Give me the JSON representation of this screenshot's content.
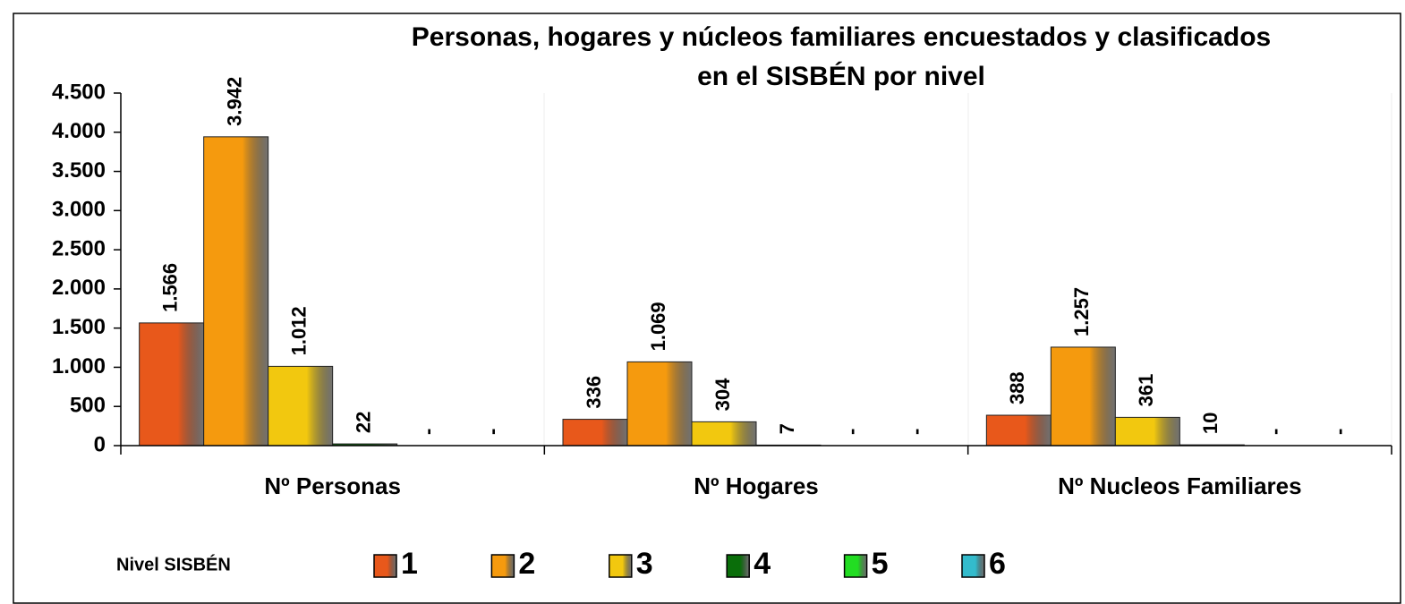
{
  "chart_data": {
    "type": "bar",
    "title": [
      "Personas, hogares y núcleos familiares encuestados y clasificados",
      "en el SISBÉN por nivel"
    ],
    "categories": [
      "Nº Personas",
      "Nº Hogares",
      "Nº Nucleos Familiares"
    ],
    "legend_title": "Nivel SISBÉN",
    "series": [
      {
        "name": "1",
        "color": "#e8581b",
        "values": [
          1566,
          336,
          388
        ],
        "value_labels": [
          "1.566",
          "336",
          "388"
        ]
      },
      {
        "name": "2",
        "color": "#f59a0e",
        "values": [
          3942,
          1069,
          1257
        ],
        "value_labels": [
          "3.942",
          "1.069",
          "1.257"
        ]
      },
      {
        "name": "3",
        "color": "#f2c80f",
        "values": [
          1012,
          304,
          361
        ],
        "value_labels": [
          "1.012",
          "304",
          "361"
        ]
      },
      {
        "name": "4",
        "color": "#0a6e0a",
        "values": [
          22,
          7,
          10
        ],
        "value_labels": [
          "22",
          "7",
          "10"
        ]
      },
      {
        "name": "5",
        "color": "#22dd22",
        "values": [
          0,
          0,
          0
        ],
        "value_labels": [
          "-",
          "-",
          "-"
        ]
      },
      {
        "name": "6",
        "color": "#33bbcc",
        "values": [
          0,
          0,
          0
        ],
        "value_labels": [
          "-",
          "-",
          "-"
        ]
      }
    ],
    "ylim": [
      0,
      4500
    ],
    "yticks": [
      0,
      500,
      {
        "value": 1000,
        "label": "1.000"
      },
      {
        "value": 1500,
        "label": "1.500"
      },
      {
        "value": 2000,
        "label": "2.000"
      },
      {
        "value": 2500,
        "label": "2.500"
      },
      {
        "value": 3000,
        "label": "3.000"
      },
      {
        "value": 3500,
        "label": "3.500"
      },
      {
        "value": 4000,
        "label": "4.000"
      },
      {
        "value": 4500,
        "label": "4.500"
      }
    ],
    "grid": false,
    "legend": "bottom"
  }
}
